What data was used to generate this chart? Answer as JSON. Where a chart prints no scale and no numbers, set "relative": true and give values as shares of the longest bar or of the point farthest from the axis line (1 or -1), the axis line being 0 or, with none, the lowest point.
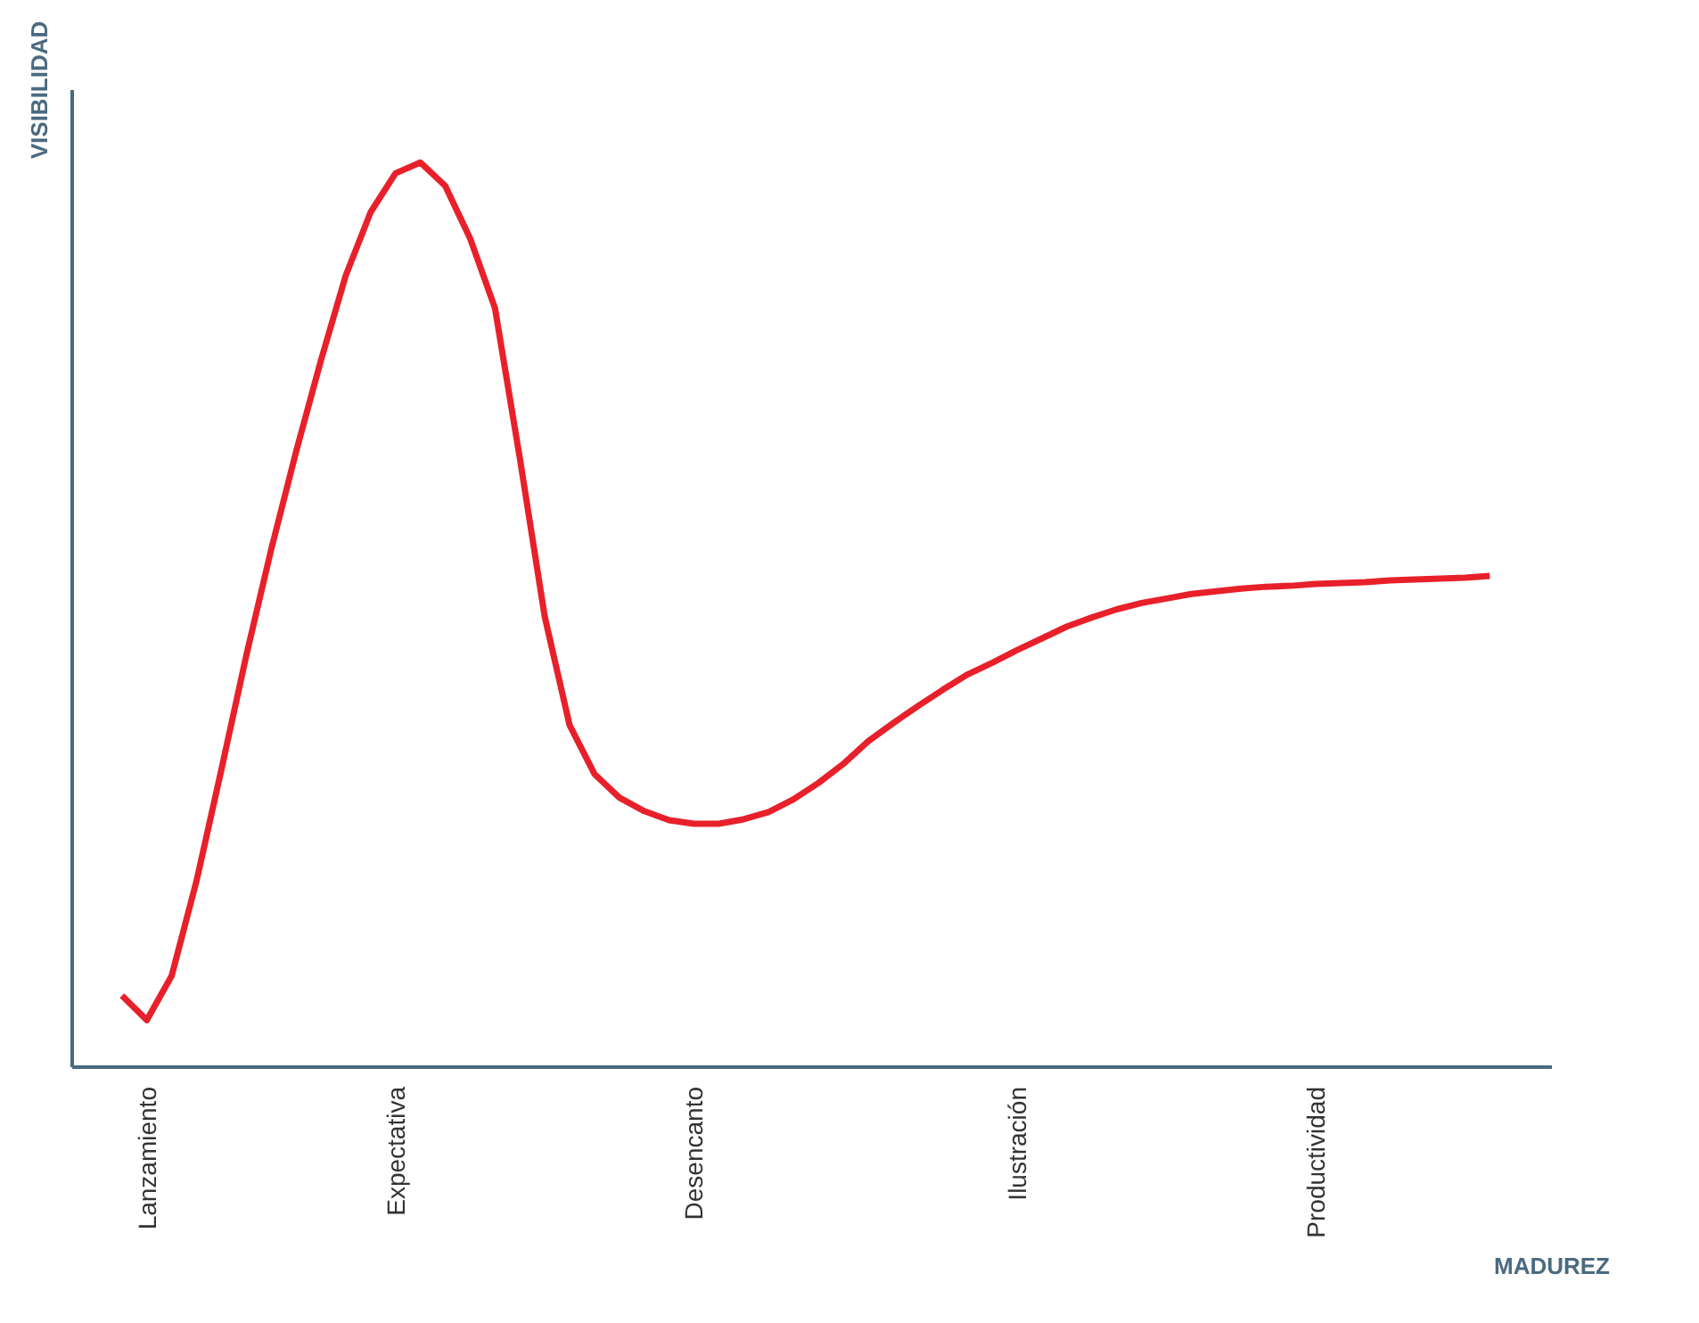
{
  "chart_data": {
    "type": "line",
    "relative": true,
    "xlabel": "MADUREZ",
    "ylabel": "VISIBILIDAD",
    "categories": [
      null,
      "Lanzamiento",
      null,
      null,
      null,
      null,
      null,
      null,
      null,
      null,
      null,
      "Expectativa",
      null,
      null,
      null,
      null,
      null,
      null,
      null,
      null,
      null,
      null,
      null,
      "Desencanto",
      null,
      null,
      null,
      null,
      null,
      null,
      null,
      null,
      null,
      null,
      null,
      null,
      "Ilustración",
      null,
      null,
      null,
      null,
      null,
      null,
      null,
      null,
      null,
      null,
      null,
      "Productividad",
      null,
      null,
      null,
      null,
      null,
      null,
      null
    ],
    "series": [
      {
        "color": "#e8202a",
        "values": [
          0.079,
          0.052,
          0.101,
          0.206,
          0.329,
          0.455,
          0.572,
          0.68,
          0.781,
          0.875,
          0.945,
          0.988,
          1,
          0.974,
          0.916,
          0.839,
          0.673,
          0.498,
          0.378,
          0.324,
          0.298,
          0.283,
          0.273,
          0.269,
          0.269,
          0.274,
          0.282,
          0.296,
          0.314,
          0.335,
          0.36,
          0.38,
          0.399,
          0.417,
          0.434,
          0.447,
          0.461,
          0.474,
          0.487,
          0.497,
          0.506,
          0.513,
          0.518,
          0.523,
          0.526,
          0.529,
          0.531,
          0.532,
          0.534,
          0.535,
          0.536,
          0.538,
          0.539,
          0.54,
          0.541,
          0.543
        ]
      }
    ]
  }
}
